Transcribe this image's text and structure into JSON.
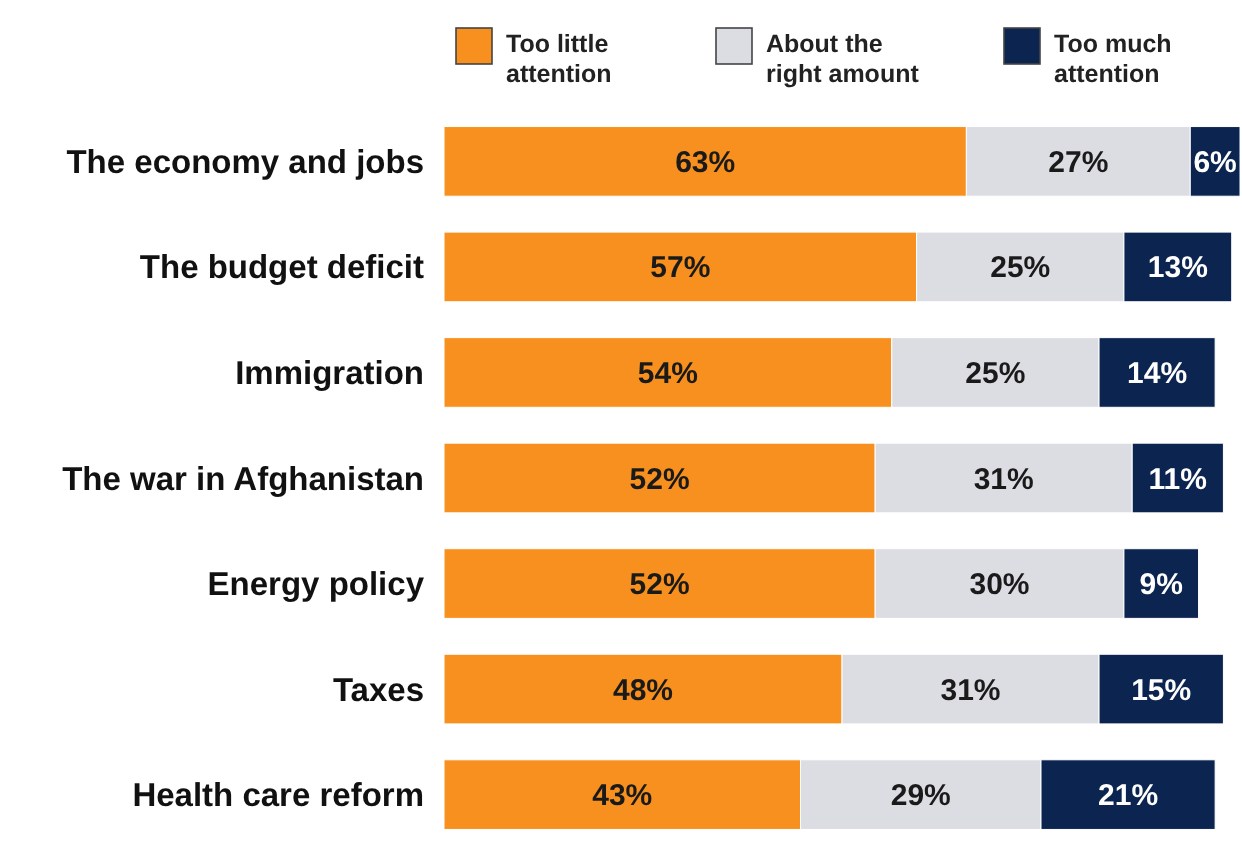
{
  "chart_data": {
    "type": "bar",
    "orientation": "horizontal",
    "stacked": true,
    "legend": "top",
    "tick_labels": "y",
    "categories": [
      "The economy and jobs",
      "The budget deficit",
      "Immigration",
      "The war in Afghanistan",
      "Energy policy",
      "Taxes",
      "Health care reform"
    ],
    "series": [
      {
        "name": "Too little attention",
        "color": "#f7901e",
        "values": [
          63,
          57,
          54,
          52,
          52,
          48,
          43
        ],
        "value_labels": [
          "63%",
          "57%",
          "54%",
          "52%",
          "52%",
          "48%",
          "43%"
        ]
      },
      {
        "name": "About the right amount",
        "color": "#dcdde3",
        "values": [
          27,
          25,
          25,
          31,
          30,
          31,
          29
        ],
        "value_labels": [
          "27%",
          "25%",
          "25%",
          "31%",
          "30%",
          "31%",
          "29%"
        ]
      },
      {
        "name": "Too much attention",
        "color": "#0c2550",
        "values": [
          6,
          13,
          14,
          11,
          9,
          15,
          21
        ],
        "value_labels": [
          "6%",
          "13%",
          "14%",
          "11%",
          "9%",
          "15%",
          "21%"
        ]
      }
    ]
  }
}
